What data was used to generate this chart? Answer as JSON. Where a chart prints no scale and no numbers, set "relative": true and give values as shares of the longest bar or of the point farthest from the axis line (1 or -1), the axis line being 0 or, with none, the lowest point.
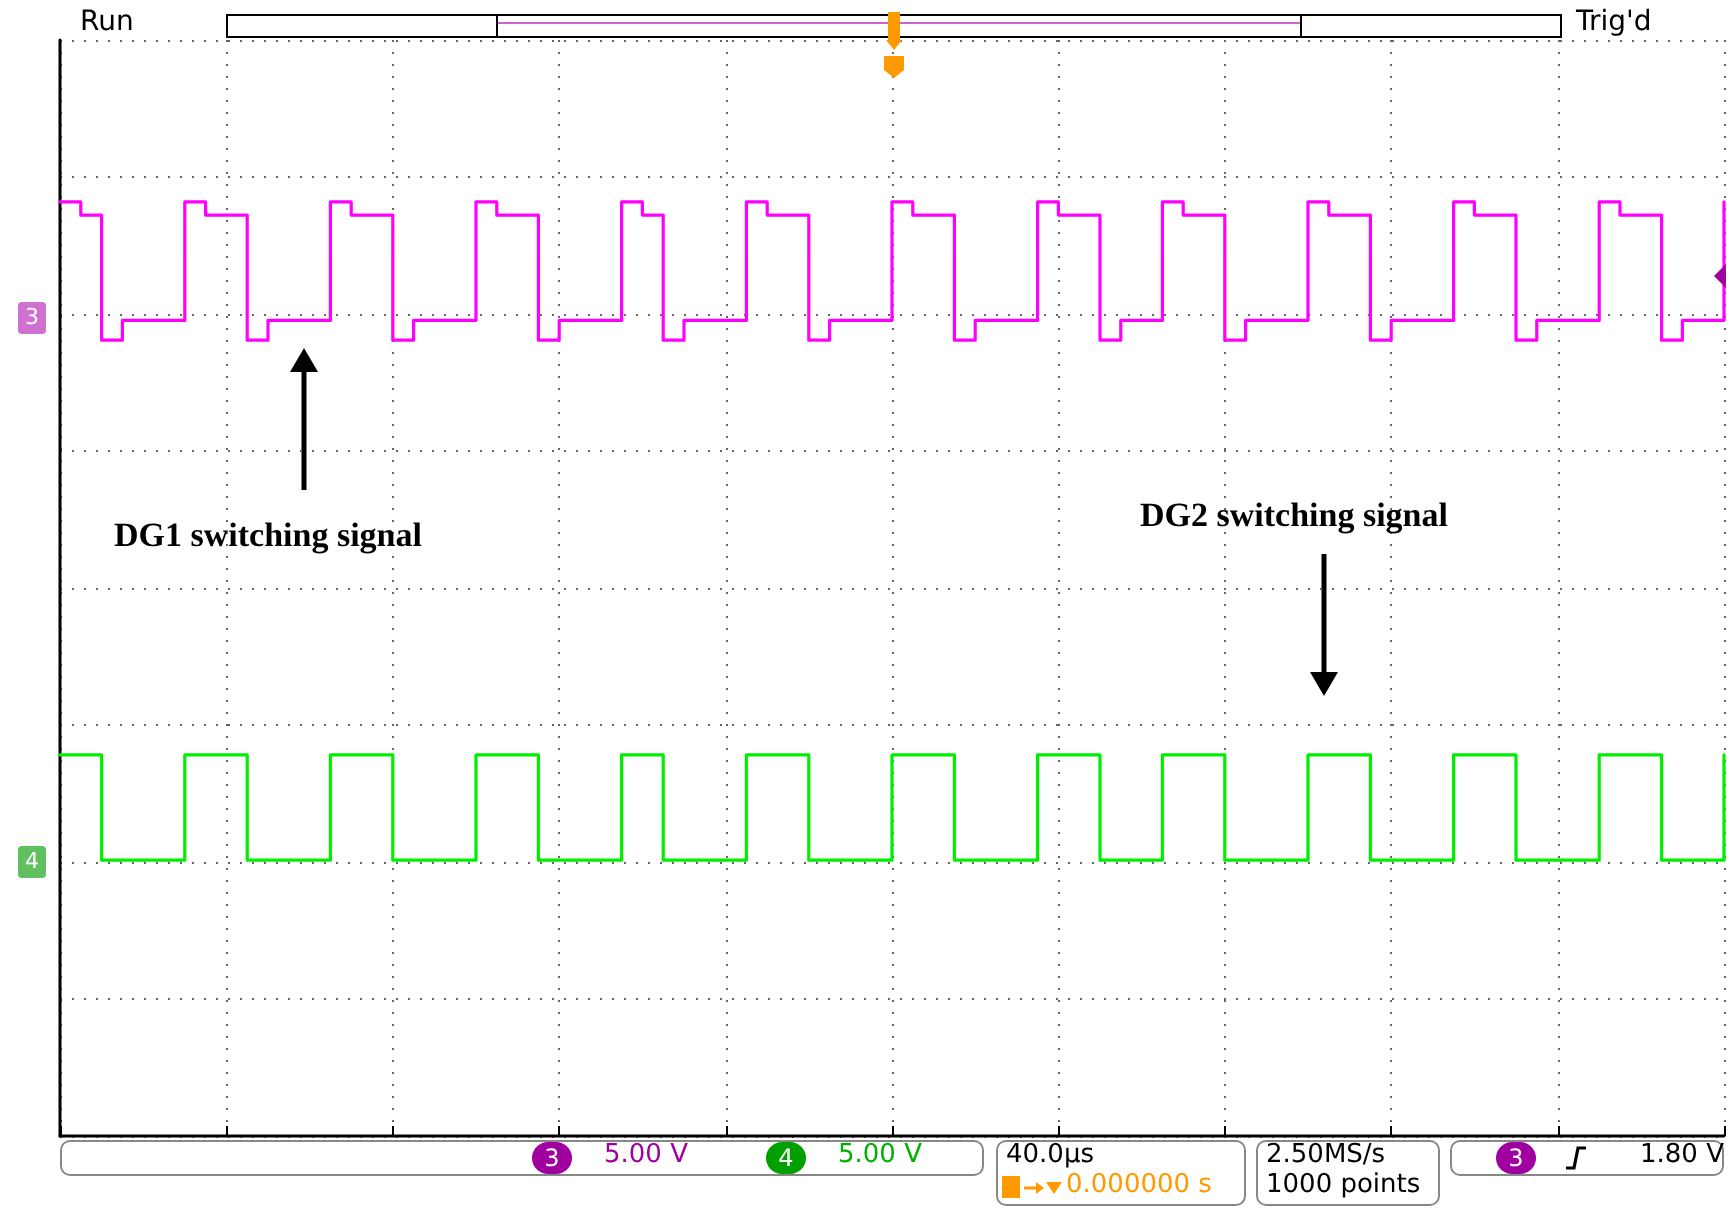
{
  "chart_data": {
    "type": "step",
    "relative": true,
    "categories": [
      null,
      null,
      null,
      null,
      null,
      null,
      null,
      null,
      null,
      null,
      null,
      null,
      null,
      null,
      null,
      null,
      null,
      null,
      null,
      null,
      null,
      null,
      null,
      null,
      null,
      null,
      null,
      null,
      null,
      null,
      null,
      null,
      null,
      null,
      null,
      null,
      null,
      null,
      null,
      null,
      null,
      null,
      null,
      null,
      null,
      null,
      null,
      null,
      null,
      null,
      null,
      null,
      null,
      null,
      null,
      null,
      null,
      null,
      null,
      null,
      null,
      null,
      null,
      null,
      null,
      null,
      null,
      null,
      null,
      null,
      null,
      null,
      null,
      null,
      null,
      null,
      null,
      null,
      null,
      null,
      null
    ],
    "grid": true,
    "line_style": "solid",
    "series": [
      {
        "color": "#ff00ff",
        "values": [
          1.0,
          0.98,
          0.79,
          0.82,
          0.82,
          0.82,
          1.0,
          0.98,
          0.98,
          0.79,
          0.82,
          0.82,
          0.82,
          1.0,
          0.98,
          0.98,
          0.79,
          0.82,
          0.82,
          0.82,
          1.0,
          0.98,
          0.98,
          0.79,
          0.82,
          0.82,
          0.82,
          1.0,
          0.98,
          0.79,
          0.82,
          0.82,
          0.82,
          1.0,
          0.98,
          0.98,
          0.79,
          0.82,
          0.82,
          0.82,
          1.0,
          0.98,
          0.98,
          0.79,
          0.82,
          0.82,
          0.82,
          1.0,
          0.98,
          0.98,
          0.79,
          0.82,
          0.82,
          1.0,
          0.98,
          0.98,
          0.79,
          0.82,
          0.82,
          0.82,
          1.0,
          0.98,
          0.98,
          0.79,
          0.82,
          0.82,
          0.82,
          1.0,
          0.98,
          0.98,
          0.79,
          0.82,
          0.82,
          0.82,
          1.0,
          0.98,
          0.98,
          0.79,
          0.82,
          0.82,
          1.0
        ]
      },
      {
        "color": "#00ee00",
        "values": [
          0.16,
          0.16,
          0,
          0,
          0,
          0,
          0.16,
          0.16,
          0.16,
          0,
          0,
          0,
          0,
          0.16,
          0.16,
          0.16,
          0,
          0,
          0,
          0,
          0.16,
          0.16,
          0.16,
          0,
          0,
          0,
          0,
          0.16,
          0.16,
          0,
          0,
          0,
          0,
          0.16,
          0.16,
          0.16,
          0,
          0,
          0,
          0,
          0.16,
          0.16,
          0.16,
          0,
          0,
          0,
          0,
          0.16,
          0.16,
          0.16,
          0,
          0,
          0,
          0.16,
          0.16,
          0.16,
          0,
          0,
          0,
          0,
          0.16,
          0.16,
          0.16,
          0,
          0,
          0,
          0,
          0.16,
          0.16,
          0.16,
          0,
          0,
          0,
          0,
          0.16,
          0.16,
          0.16,
          0,
          0,
          0,
          0.16
        ]
      }
    ],
    "annotations": [
      "Run",
      "Trig'd",
      "DG1 switching signal",
      "DG2 switching signal",
      "3",
      "4",
      "3",
      "5.00 V",
      "4",
      "5.00 V",
      "40.0µs",
      "0.000000 s",
      "2.50MS/s",
      "1000 points",
      "3",
      "1.80 V"
    ]
  }
}
